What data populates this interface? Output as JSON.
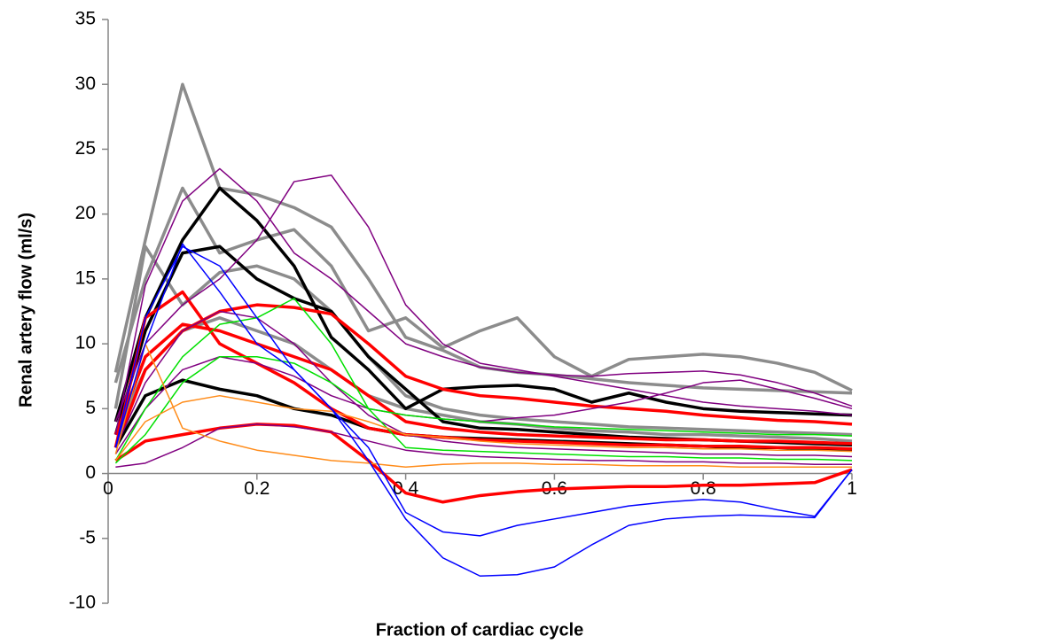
{
  "chart_data": {
    "type": "line",
    "x_label": "Fraction of cardiac cycle",
    "y_label": "Renal artery flow (ml/s)",
    "x": [
      0.01,
      0.05,
      0.1,
      0.15,
      0.2,
      0.25,
      0.3,
      0.35,
      0.4,
      0.45,
      0.5,
      0.55,
      0.6,
      0.65,
      0.7,
      0.75,
      0.8,
      0.85,
      0.9,
      0.95,
      1
    ],
    "xlim": [
      0,
      1
    ],
    "xticks": [
      0,
      0.2,
      0.4,
      0.6,
      0.8,
      1
    ],
    "ylim": [
      -10,
      35
    ],
    "yticks": [
      -10,
      -5,
      0,
      5,
      10,
      15,
      20,
      25,
      30,
      35
    ],
    "grid": false,
    "series": [
      {
        "color": "#8c8c8c",
        "linewidth": 3.5,
        "values": [
          7.8,
          18,
          30,
          22,
          21.5,
          20.5,
          19,
          15,
          10.5,
          9.5,
          8.2,
          7.8,
          7.6,
          7.3,
          7.0,
          6.8,
          6.6,
          6.5,
          6.4,
          6.3,
          6.2
        ]
      },
      {
        "color": "#8c8c8c",
        "linewidth": 3.5,
        "values": [
          7,
          15,
          22,
          17,
          18,
          18.8,
          16,
          11,
          12,
          9.7,
          11,
          12,
          9,
          7.5,
          8.8,
          9,
          9.2,
          9,
          8.5,
          7.8,
          6.4
        ]
      },
      {
        "color": "#8c8c8c",
        "linewidth": 3.5,
        "values": [
          5,
          17.5,
          13,
          15.5,
          16,
          15,
          12.5,
          9,
          6,
          5,
          4.5,
          4.2,
          4,
          3.8,
          3.6,
          3.5,
          3.4,
          3.3,
          3.2,
          3.1,
          3
        ]
      },
      {
        "color": "#8c8c8c",
        "linewidth": 3.5,
        "values": [
          3,
          8,
          11,
          12,
          11,
          10,
          8,
          6,
          5,
          4.5,
          4,
          3.8,
          3.5,
          3.3,
          3.2,
          3,
          3,
          2.9,
          2.8,
          2.7,
          2.5
        ]
      },
      {
        "color": "#000000",
        "linewidth": 3.5,
        "values": [
          4,
          12,
          18,
          22,
          19.5,
          16,
          10.5,
          8,
          5,
          6.5,
          6.7,
          6.8,
          6.5,
          5.5,
          6.2,
          5.5,
          5,
          4.8,
          4.7,
          4.6,
          4.5
        ]
      },
      {
        "color": "#000000",
        "linewidth": 3.5,
        "values": [
          3,
          11,
          17,
          17.5,
          15,
          13.5,
          12.5,
          9,
          6.5,
          4,
          3.5,
          3.4,
          3.2,
          3,
          2.8,
          2.7,
          2.6,
          2.5,
          2.4,
          2.3,
          2.2
        ]
      },
      {
        "color": "#000000",
        "linewidth": 3.5,
        "values": [
          2,
          6,
          7.2,
          6.5,
          6,
          5,
          4.5,
          3.5,
          3,
          2.8,
          2.7,
          2.6,
          2.5,
          2.4,
          2.3,
          2.2,
          2.1,
          2,
          2,
          1.9,
          1.8
        ]
      },
      {
        "color": "#ff0000",
        "linewidth": 3.5,
        "values": [
          2,
          8,
          11,
          12.5,
          13,
          12.8,
          12.3,
          10,
          7.5,
          6.5,
          6,
          5.8,
          5.5,
          5.2,
          5,
          4.8,
          4.5,
          4.3,
          4.1,
          4,
          3.8
        ]
      },
      {
        "color": "#ff0000",
        "linewidth": 3.5,
        "values": [
          1,
          2.5,
          3,
          3.5,
          3.8,
          3.7,
          3.2,
          1,
          -1.5,
          -2.2,
          -1.7,
          -1.4,
          -1.2,
          -1.1,
          -1,
          -1,
          -0.9,
          -0.9,
          -0.8,
          -0.7,
          0.3
        ]
      },
      {
        "color": "#ff0000",
        "linewidth": 3.5,
        "values": [
          3,
          9,
          11.5,
          11,
          10,
          9,
          8,
          6,
          4,
          3.5,
          3.2,
          3,
          2.9,
          2.8,
          2.7,
          2.6,
          2.6,
          2.5,
          2.5,
          2.4,
          2.3
        ]
      },
      {
        "color": "#ff0000",
        "linewidth": 3.5,
        "values": [
          2,
          12,
          14,
          10,
          8.5,
          7,
          5,
          3.5,
          3,
          2.8,
          2.6,
          2.5,
          2.4,
          2.3,
          2.2,
          2.2,
          2.1,
          2.1,
          2,
          2,
          1.9
        ]
      },
      {
        "color": "#800080",
        "linewidth": 1.5,
        "values": [
          3,
          14.5,
          21,
          23.5,
          21,
          17,
          15,
          12.5,
          10,
          9,
          8.2,
          7.8,
          7.6,
          7.5,
          7.7,
          7.8,
          7.9,
          7.6,
          7,
          6.2,
          5.2
        ]
      },
      {
        "color": "#800080",
        "linewidth": 1.5,
        "values": [
          4,
          10,
          13,
          15,
          18,
          22.5,
          23,
          19,
          13,
          10,
          8.5,
          8,
          7.5,
          7,
          6.5,
          6,
          5.5,
          5.2,
          5,
          4.8,
          4.5
        ]
      },
      {
        "color": "#800080",
        "linewidth": 1.5,
        "values": [
          0.5,
          0.8,
          2,
          3.5,
          3.8,
          3.6,
          3.2,
          2.5,
          1.8,
          1.5,
          1.3,
          1.2,
          1.1,
          1,
          1,
          0.9,
          0.9,
          0.8,
          0.8,
          0.7,
          0.7
        ]
      },
      {
        "color": "#800080",
        "linewidth": 1.5,
        "values": [
          1.5,
          5,
          8,
          9,
          8.5,
          7.5,
          6,
          5,
          4.5,
          4.2,
          4,
          4.3,
          4.5,
          5,
          5.5,
          6.2,
          7,
          7.2,
          6.5,
          5.8,
          5
        ]
      },
      {
        "color": "#800080",
        "linewidth": 1.5,
        "values": [
          2,
          7,
          11,
          12.5,
          12,
          10,
          7,
          4.5,
          3,
          2.5,
          2.2,
          2,
          1.9,
          1.8,
          1.7,
          1.6,
          1.5,
          1.5,
          1.4,
          1.4,
          1.3
        ]
      },
      {
        "color": "#00e000",
        "linewidth": 1.5,
        "values": [
          1,
          5,
          9,
          11.5,
          12,
          13.5,
          10,
          5,
          2,
          1.8,
          1.7,
          1.6,
          1.5,
          1.4,
          1.3,
          1.3,
          1.2,
          1.2,
          1.1,
          1.1,
          1
        ]
      },
      {
        "color": "#00e000",
        "linewidth": 1.5,
        "values": [
          0.8,
          3,
          7,
          9,
          9,
          8.5,
          7,
          5,
          4.5,
          4.2,
          4,
          3.8,
          3.6,
          3.5,
          3.4,
          3.3,
          3.2,
          3.1,
          3,
          3,
          2.9
        ]
      },
      {
        "color": "#ff8c1a",
        "linewidth": 1.5,
        "values": [
          1,
          4,
          5.5,
          6,
          5.5,
          5,
          4.8,
          4,
          3,
          2.8,
          2.5,
          2.3,
          2.2,
          2.1,
          2,
          2,
          1.9,
          1.9,
          1.8,
          1.8,
          1.7
        ]
      },
      {
        "color": "#ff8c1a",
        "linewidth": 1.5,
        "values": [
          1.5,
          10,
          3.5,
          2.5,
          1.8,
          1.4,
          1,
          0.8,
          0.5,
          0.7,
          0.8,
          0.8,
          0.7,
          0.7,
          0.6,
          0.6,
          0.6,
          0.5,
          0.5,
          0.5,
          0.5
        ]
      },
      {
        "color": "#0000ff",
        "linewidth": 1.5,
        "values": [
          2,
          12,
          17.5,
          16,
          12,
          8,
          5,
          2,
          -3,
          -4.5,
          -4.8,
          -4,
          -3.5,
          -3,
          -2.5,
          -2.2,
          -2,
          -2.2,
          -2.8,
          -3.3,
          0.3
        ]
      },
      {
        "color": "#0000ff",
        "linewidth": 1.5,
        "values": [
          2,
          10,
          17.7,
          14,
          10,
          8,
          5,
          1,
          -3.5,
          -6.5,
          -7.9,
          -7.8,
          -7.2,
          -5.5,
          -4,
          -3.5,
          -3.3,
          -3.2,
          -3.3,
          -3.4,
          0.3
        ]
      }
    ]
  }
}
